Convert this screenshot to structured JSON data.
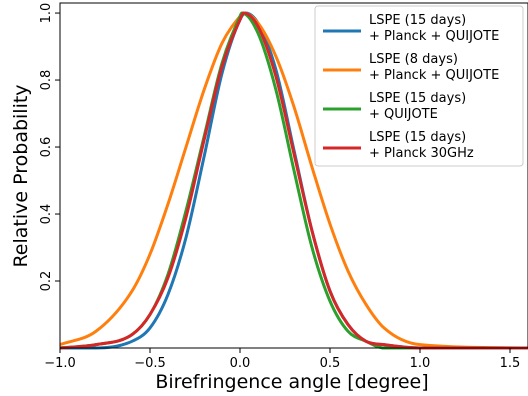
{
  "chart_data": {
    "type": "line",
    "xlabel": "Birefringence angle [degree]",
    "ylabel": "Relative Probability",
    "xlim": [
      -1.0,
      1.6
    ],
    "ylim": [
      0.0,
      1.03
    ],
    "xticks": [
      -1.0,
      -0.5,
      0.0,
      0.5,
      1.0,
      1.5
    ],
    "xtick_labels": [
      "−1.0",
      "−0.5",
      "0.0",
      "0.5",
      "1.0",
      "1.5"
    ],
    "yticks": [
      0.2,
      0.4,
      0.6,
      0.8,
      1.0
    ],
    "ytick_labels": [
      "0.2",
      "0.4",
      "0.6",
      "0.8",
      "1.0"
    ],
    "grid": false,
    "legend_position": "top-right",
    "series": [
      {
        "name": "LSPE (15 days)\n + Planck + QUIJOTE",
        "color": "#1f77b4",
        "x": [
          -1.0,
          -0.8,
          -0.6,
          -0.5,
          -0.4,
          -0.3,
          -0.2,
          -0.1,
          0.0,
          0.03,
          0.1,
          0.2,
          0.3,
          0.4,
          0.5,
          0.6,
          0.7,
          0.8,
          1.0,
          1.6
        ],
        "y": [
          0.0,
          0.0,
          0.02,
          0.06,
          0.16,
          0.33,
          0.57,
          0.82,
          0.98,
          1.0,
          0.97,
          0.83,
          0.59,
          0.35,
          0.17,
          0.07,
          0.02,
          0.01,
          0.0,
          0.0
        ]
      },
      {
        "name": "LSPE (8 days)\n + Planck + QUIJOTE",
        "color": "#ff7f0e",
        "x": [
          -1.0,
          -0.8,
          -0.6,
          -0.5,
          -0.4,
          -0.3,
          -0.2,
          -0.1,
          0.0,
          0.02,
          0.1,
          0.2,
          0.3,
          0.4,
          0.5,
          0.6,
          0.7,
          0.8,
          1.0,
          1.6
        ],
        "y": [
          0.01,
          0.05,
          0.17,
          0.28,
          0.43,
          0.6,
          0.77,
          0.91,
          0.99,
          1.0,
          0.97,
          0.87,
          0.72,
          0.54,
          0.37,
          0.23,
          0.13,
          0.06,
          0.01,
          0.0
        ]
      },
      {
        "name": "LSPE (15 days)\n + QUIJOTE",
        "color": "#2ca02c",
        "x": [
          -1.0,
          -0.8,
          -0.6,
          -0.5,
          -0.4,
          -0.3,
          -0.2,
          -0.1,
          0.0,
          0.01,
          0.1,
          0.2,
          0.3,
          0.4,
          0.5,
          0.6,
          0.7,
          0.8,
          1.0,
          1.6
        ],
        "y": [
          0.0,
          0.01,
          0.04,
          0.1,
          0.22,
          0.41,
          0.63,
          0.85,
          0.99,
          1.0,
          0.94,
          0.77,
          0.53,
          0.3,
          0.14,
          0.05,
          0.02,
          0.0,
          0.0,
          0.0
        ]
      },
      {
        "name": "LSPE (15 days)\n + Planck 30GHz",
        "color": "#d62728",
        "x": [
          -1.0,
          -0.8,
          -0.6,
          -0.5,
          -0.4,
          -0.3,
          -0.2,
          -0.1,
          0.0,
          0.02,
          0.1,
          0.2,
          0.3,
          0.4,
          0.5,
          0.6,
          0.7,
          0.8,
          1.0,
          1.6
        ],
        "y": [
          0.0,
          0.01,
          0.04,
          0.1,
          0.21,
          0.39,
          0.62,
          0.84,
          0.98,
          1.0,
          0.96,
          0.81,
          0.58,
          0.35,
          0.17,
          0.07,
          0.02,
          0.01,
          0.0,
          0.0
        ]
      }
    ]
  }
}
